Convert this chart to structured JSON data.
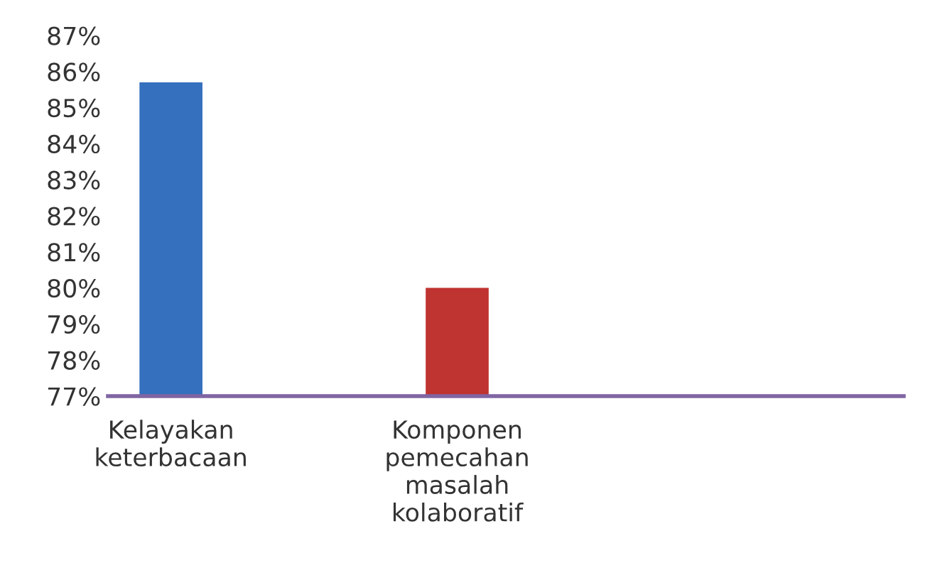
{
  "chart_data": {
    "type": "bar",
    "categories": [
      "Kelayakan\nketerbacaan",
      "Komponen\npemecahan\nmasalah\nkolaboratif"
    ],
    "values": [
      85.7,
      80.0
    ],
    "colors": [
      "#3470bd",
      "#bf3330"
    ],
    "ylim": [
      77,
      87
    ],
    "yticks": [
      {
        "value": 77,
        "label": "77%"
      },
      {
        "value": 78,
        "label": "78%"
      },
      {
        "value": 79,
        "label": "79%"
      },
      {
        "value": 80,
        "label": "80%"
      },
      {
        "value": 81,
        "label": "81%"
      },
      {
        "value": 82,
        "label": "82%"
      },
      {
        "value": 83,
        "label": "83%"
      },
      {
        "value": 84,
        "label": "84%"
      },
      {
        "value": 85,
        "label": "85%"
      },
      {
        "value": 86,
        "label": "86%"
      },
      {
        "value": 87,
        "label": "87%"
      }
    ],
    "grid": false,
    "legend": false
  }
}
